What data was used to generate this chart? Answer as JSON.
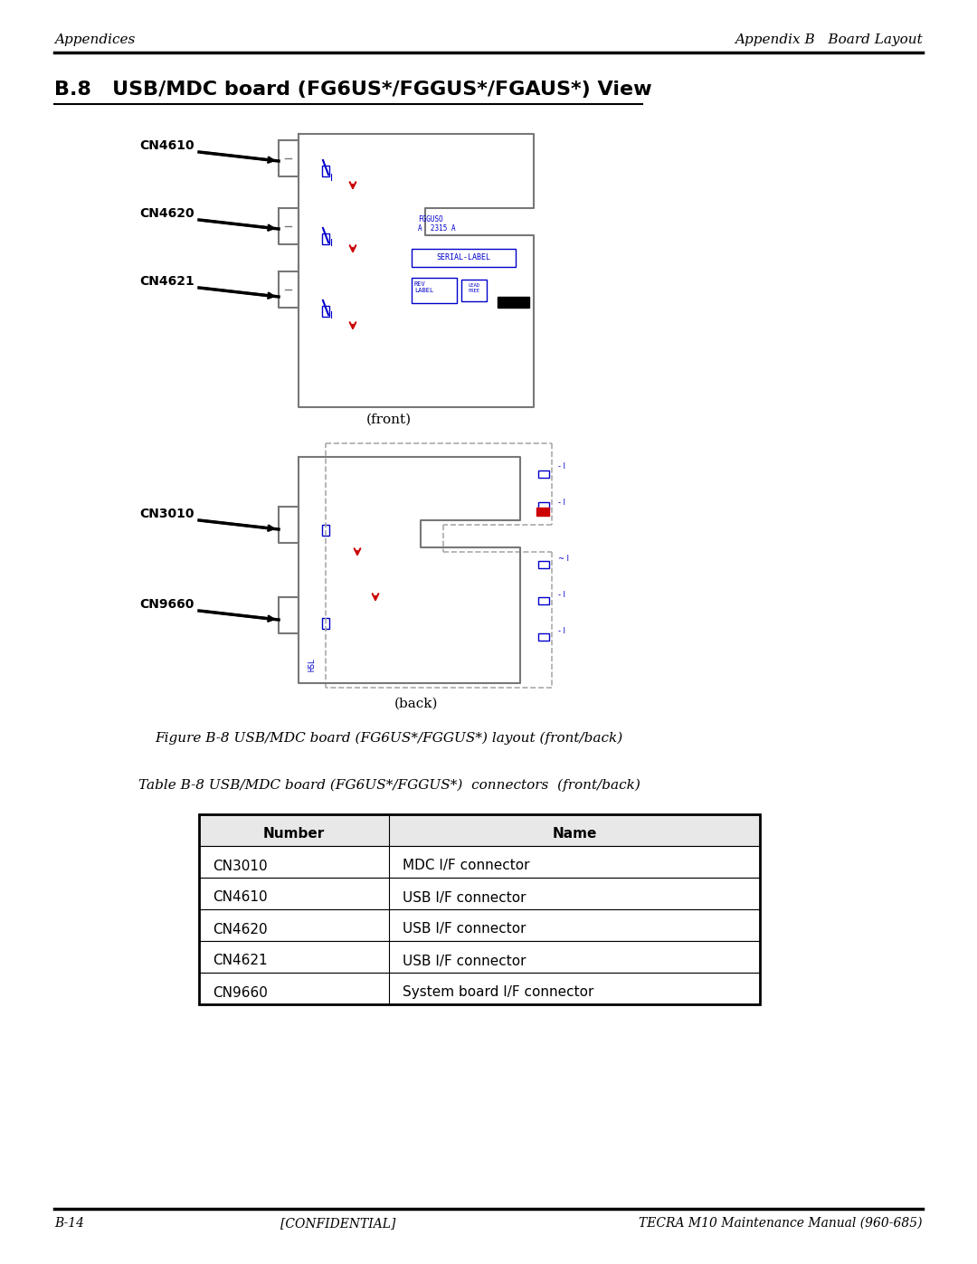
{
  "page_title_left": "Appendices",
  "page_title_right": "Appendix B   Board Layout",
  "section_title": "B.8   USB/MDC board (FG6US*/FGGUS*/FGAUS*) View",
  "front_label": "(front)",
  "back_label": "(back)",
  "figure_caption": "Figure B-8 USB/MDC board (FG6US*/FGGUS*) layout (front/back)",
  "table_caption": "Table B-8 USB/MDC board (FG6US*/FGGUS*)  connectors  (front/back)",
  "footer_left": "B-14",
  "footer_center": "[CONFIDENTIAL]",
  "footer_right": "TECRA M10 Maintenance Manual (960-685)",
  "table_headers": [
    "Number",
    "Name"
  ],
  "table_rows": [
    [
      "CN3010",
      "MDC I/F connector"
    ],
    [
      "CN4610",
      "USB I/F connector"
    ],
    [
      "CN4620",
      "USB I/F connector"
    ],
    [
      "CN4621",
      "USB I/F connector"
    ],
    [
      "CN9660",
      "System board I/F connector"
    ]
  ],
  "bg_color": "#ffffff",
  "text_color": "#000000",
  "blue_color": "#0000cc",
  "red_color": "#cc0000",
  "line_color": "#555555",
  "board_line_color": "#777777"
}
